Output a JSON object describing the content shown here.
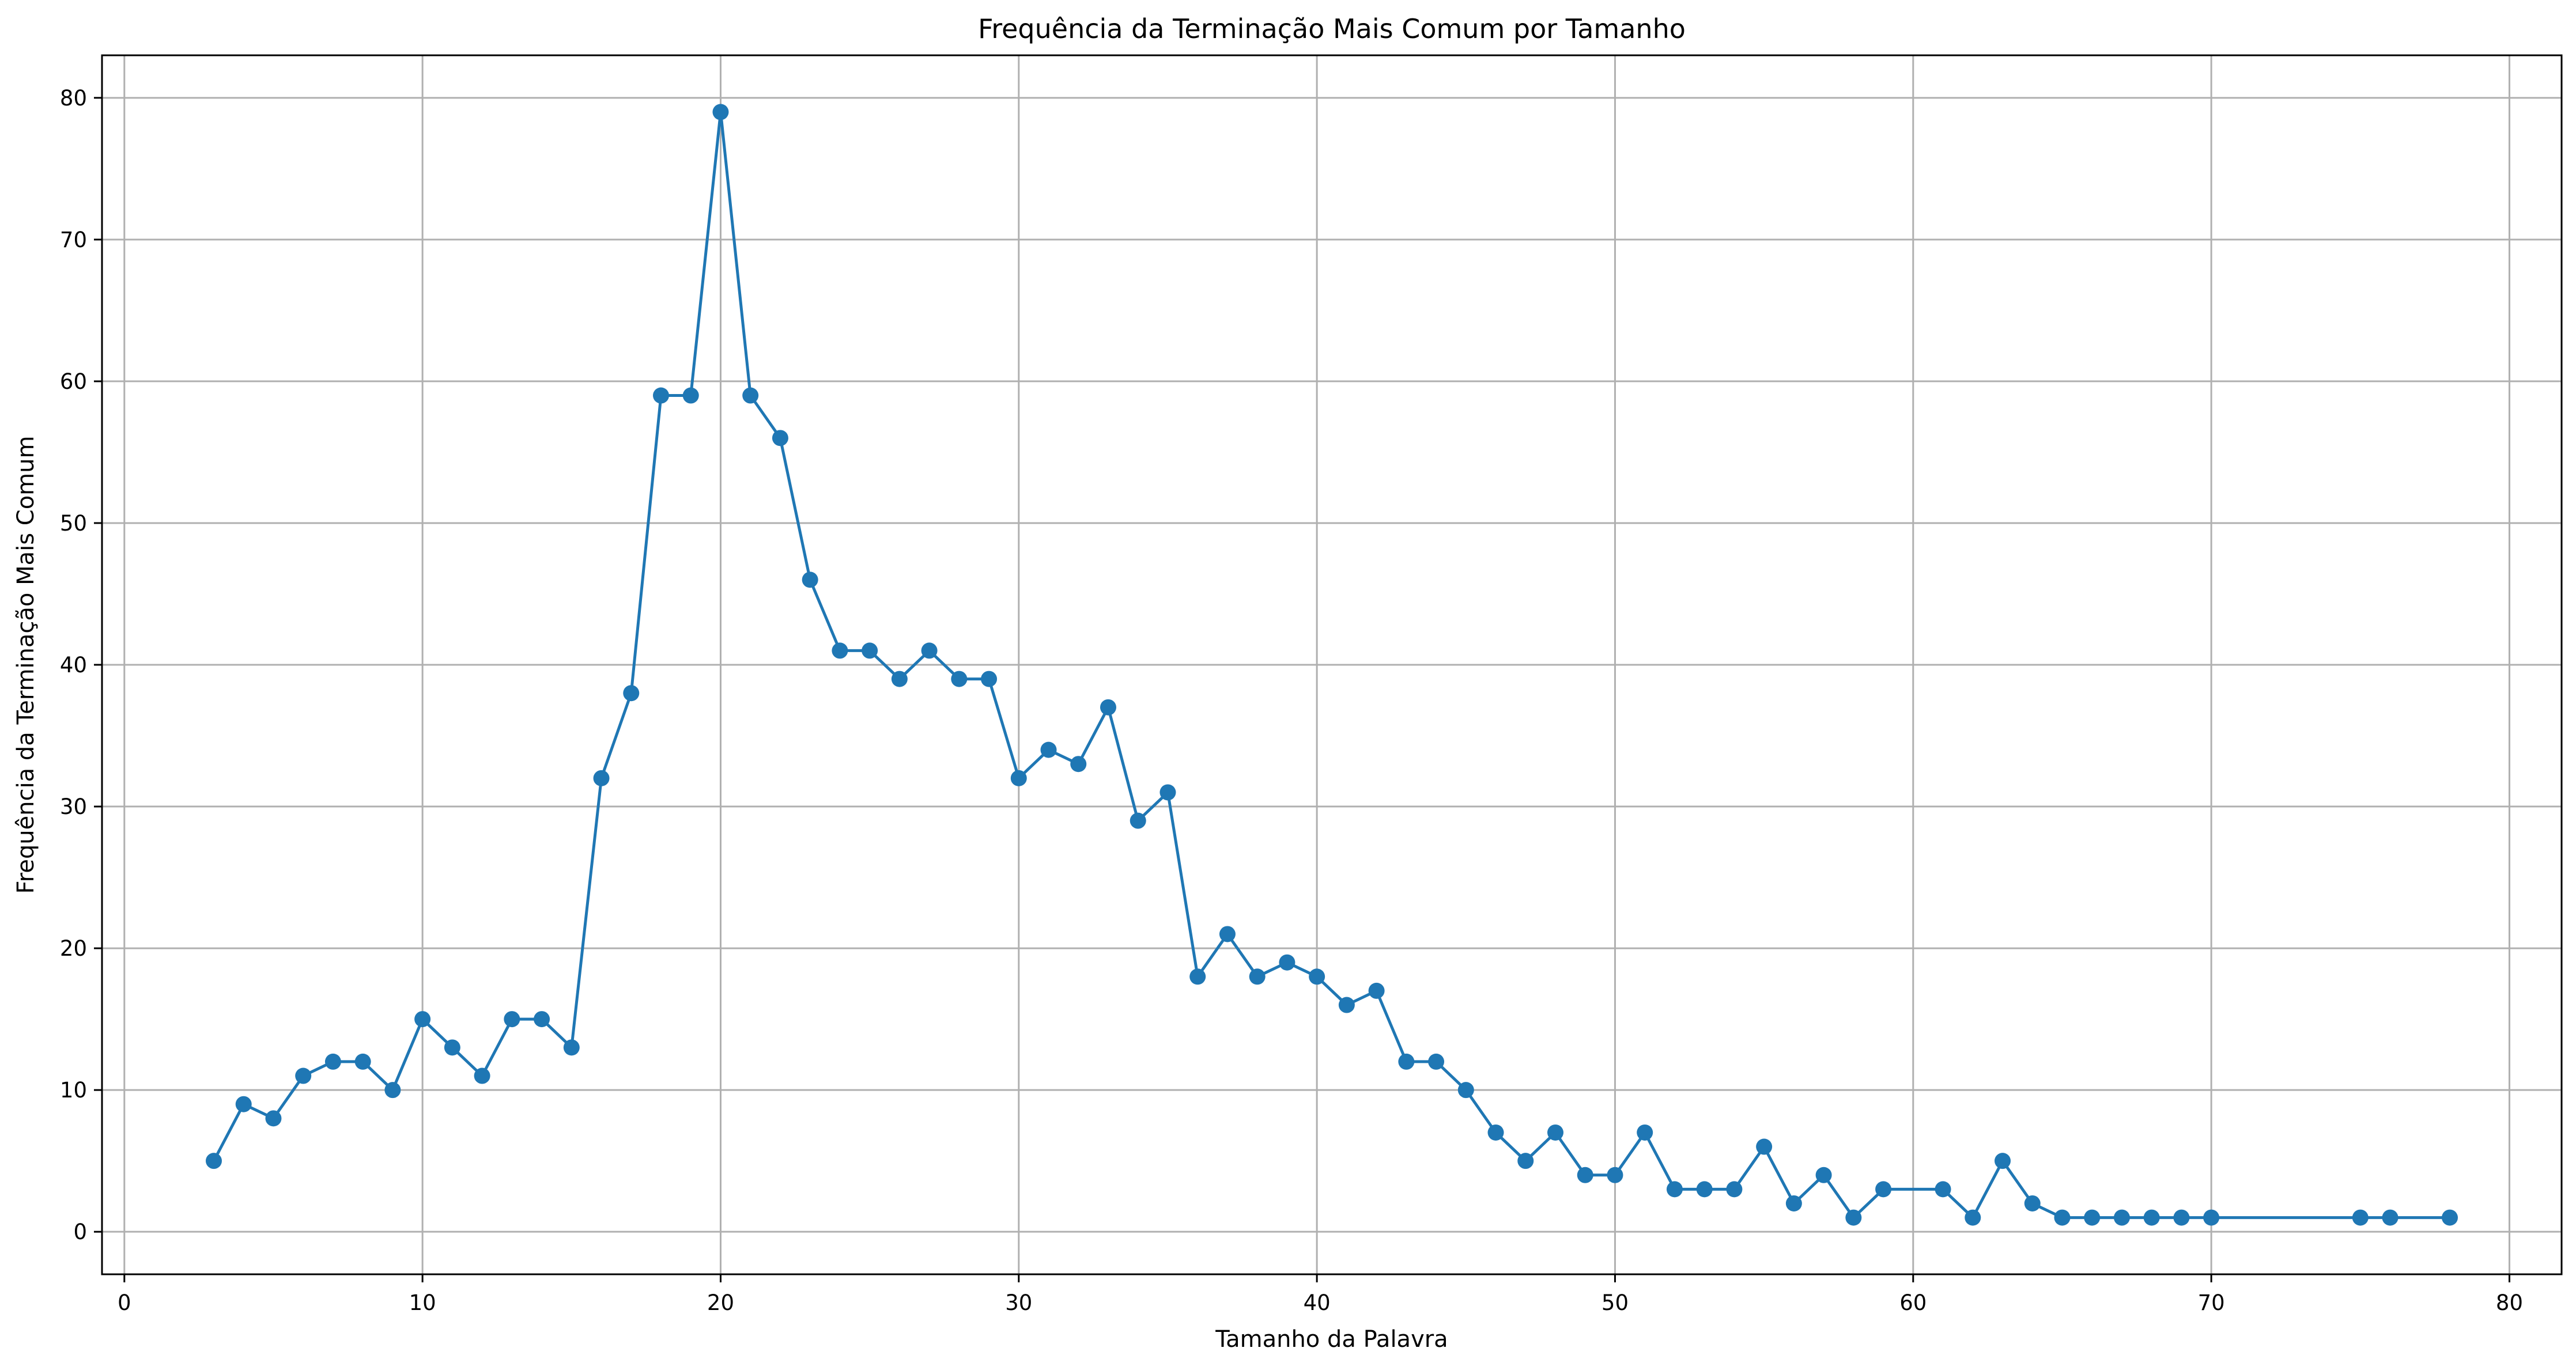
{
  "chart_data": {
    "type": "line",
    "title": "Frequência da Terminação Mais Comum por Tamanho",
    "xlabel": "Tamanho da Palavra",
    "ylabel": "Frequência da Terminação Mais Comum",
    "xlim": [
      -0.75,
      81.75
    ],
    "ylim": [
      -3,
      83
    ],
    "xticks": [
      "0",
      "10",
      "20",
      "30",
      "40",
      "50",
      "60",
      "70",
      "80"
    ],
    "yticks": [
      "0",
      "10",
      "20",
      "30",
      "40",
      "50",
      "60",
      "70",
      "80"
    ],
    "grid": true,
    "color": "#1f77b4",
    "series": [
      {
        "x": [
          3,
          4,
          5,
          6,
          7,
          8,
          9,
          10,
          11,
          12,
          13,
          14,
          15,
          16,
          17,
          18,
          19,
          20,
          21,
          22,
          23,
          24,
          25,
          26,
          27,
          28,
          29,
          30,
          31,
          32,
          33,
          34,
          35,
          36,
          37,
          38,
          39,
          40,
          41,
          42,
          43,
          44,
          45,
          46,
          47,
          48,
          49,
          50,
          51,
          52,
          53,
          54,
          55,
          56,
          57,
          58,
          59,
          61,
          62,
          63,
          64,
          65,
          66,
          67,
          68,
          69,
          70,
          75,
          76,
          78
        ],
        "y": [
          5,
          9,
          8,
          11,
          12,
          12,
          10,
          15,
          13,
          11,
          15,
          15,
          13,
          32,
          38,
          59,
          59,
          79,
          59,
          56,
          46,
          41,
          41,
          39,
          41,
          39,
          39,
          32,
          34,
          33,
          37,
          29,
          31,
          18,
          21,
          18,
          19,
          18,
          16,
          17,
          12,
          12,
          10,
          7,
          5,
          7,
          4,
          4,
          7,
          3,
          3,
          3,
          6,
          2,
          4,
          1,
          3,
          3,
          1,
          5,
          2,
          1,
          1,
          1,
          1,
          1,
          1,
          1,
          1,
          1
        ]
      }
    ]
  }
}
